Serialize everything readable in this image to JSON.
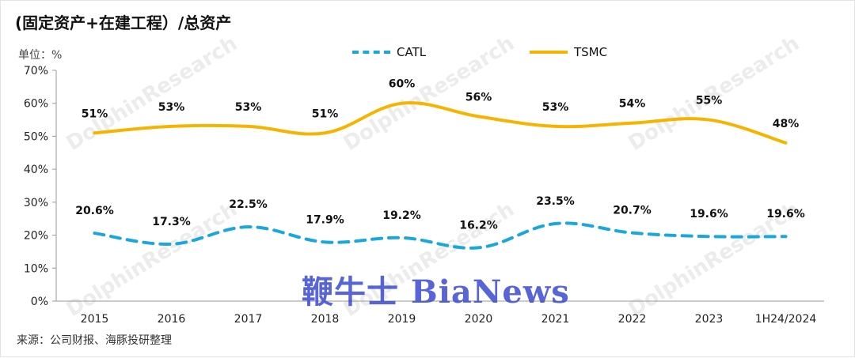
{
  "title": "(固定资产+在建工程）/总资产",
  "unit_label": "单位：%",
  "source": "来源：公司财报、海豚投研整理",
  "watermark": "DolphinResearch",
  "watermark_cn": "海豚投研",
  "brand": "鞭牛士 BiaNews",
  "colors": {
    "CATL": "#1aa7dc",
    "TSMC": "#f5b400",
    "axis": "#999999"
  },
  "chart_data": {
    "type": "line",
    "title": "(固定资产+在建工程）/总资产",
    "xlabel": "",
    "ylabel": "单位：%",
    "ylim": [
      0,
      70
    ],
    "yticks": [
      "0%",
      "10%",
      "20%",
      "30%",
      "40%",
      "50%",
      "60%",
      "70%"
    ],
    "categories": [
      "2015",
      "2016",
      "2017",
      "2018",
      "2019",
      "2020",
      "2021",
      "2022",
      "2023",
      "1H24/2024"
    ],
    "legend_position": "top-center",
    "grid": false,
    "series": [
      {
        "name": "CATL",
        "style": "dashed",
        "values": [
          20.6,
          17.3,
          22.5,
          17.9,
          19.2,
          16.2,
          23.5,
          20.7,
          19.6,
          19.6
        ],
        "labels": [
          "20.6%",
          "17.3%",
          "22.5%",
          "17.9%",
          "19.2%",
          "16.2%",
          "23.5%",
          "20.7%",
          "19.6%",
          "19.6%"
        ]
      },
      {
        "name": "TSMC",
        "style": "solid",
        "values": [
          51,
          53,
          53,
          51,
          60,
          56,
          53,
          54,
          55,
          48
        ],
        "labels": [
          "51%",
          "53%",
          "53%",
          "51%",
          "60%",
          "56%",
          "53%",
          "54%",
          "55%",
          "48%"
        ]
      }
    ]
  }
}
